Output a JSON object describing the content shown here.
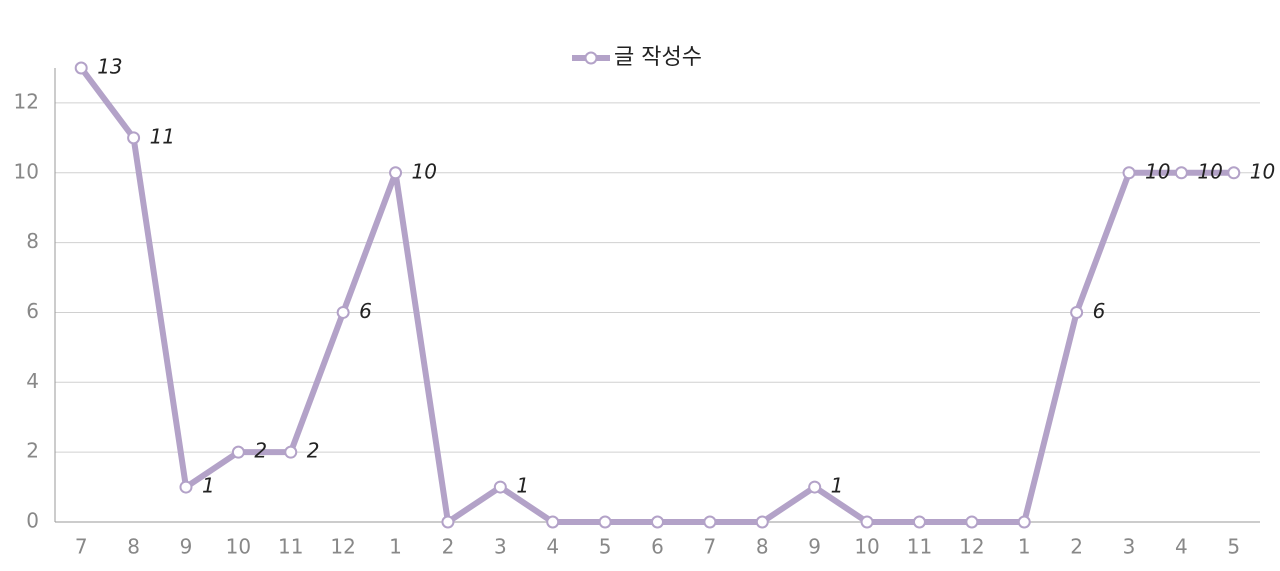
{
  "chart_data": {
    "type": "line",
    "categories": [
      "7",
      "8",
      "9",
      "10",
      "11",
      "12",
      "1",
      "2",
      "3",
      "4",
      "5",
      "6",
      "7",
      "8",
      "9",
      "10",
      "11",
      "12",
      "1",
      "2",
      "3",
      "4",
      "5"
    ],
    "series": [
      {
        "name": "글 작성수",
        "color": "#b3a2c8",
        "values": [
          13,
          11,
          1,
          2,
          2,
          6,
          10,
          0,
          1,
          0,
          0,
          0,
          0,
          0,
          1,
          0,
          0,
          0,
          0,
          6,
          10,
          10,
          10
        ]
      }
    ],
    "ylim": [
      0,
      13
    ],
    "yticks": [
      0,
      2,
      4,
      6,
      8,
      10,
      12
    ],
    "grid": true,
    "legend": "top"
  }
}
